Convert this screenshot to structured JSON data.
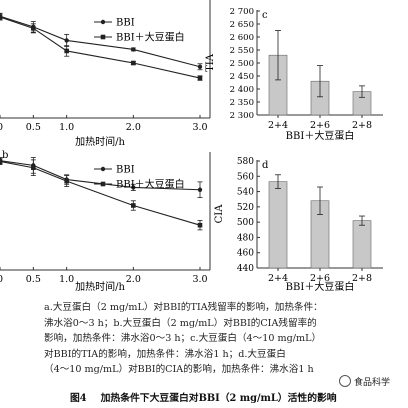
{
  "chart_data": [
    {
      "panel": "a",
      "type": "line",
      "x": [
        0,
        0.5,
        1.0,
        2.0,
        3.0
      ],
      "x_tick_labels": [
        "0",
        "0.5",
        "1.0",
        "2.0",
        "3.0"
      ],
      "xlabel": "加热时间/h",
      "ylabel": "",
      "legend_position": "top",
      "series": [
        {
          "name": "BBI",
          "values": [
            0.975,
            0.905,
            0.815,
            0.755,
            0.64
          ]
        },
        {
          "name": "BBI＋大豆蛋白",
          "values": [
            0.97,
            0.895,
            0.745,
            0.665,
            0.565
          ]
        }
      ],
      "error": [
        [
          0.02,
          0.035,
          0.04,
          0.01,
          0.02
        ],
        [
          0.02,
          0.03,
          0.035,
          0.01,
          0.015
        ]
      ],
      "ylim": [
        0.3,
        1.05
      ]
    },
    {
      "panel": "c",
      "type": "bar",
      "categories": [
        "2+4",
        "2+6",
        "2+8"
      ],
      "values": [
        2530,
        2430,
        2390
      ],
      "error": [
        95,
        60,
        22
      ],
      "xlabel": "BBI＋大豆蛋白",
      "ylabel": "TIA",
      "yticks": [
        "2 300",
        "2 350",
        "2 400",
        "2 450",
        "2 500",
        "2 550",
        "2 600",
        "2 650",
        "2 700"
      ],
      "ylim": [
        2300,
        2700
      ]
    },
    {
      "panel": "b",
      "type": "line",
      "x": [
        0,
        0.5,
        1.0,
        2.0,
        3.0
      ],
      "x_tick_labels": [
        "0",
        "0.5",
        "1.0",
        "2.0",
        "3.0"
      ],
      "xlabel": "加热时间/h",
      "ylabel": "",
      "legend_position": "top",
      "series": [
        {
          "name": "BBI",
          "values": [
            0.995,
            0.965,
            0.875,
            0.825,
            0.81
          ]
        },
        {
          "name": "BBI＋大豆蛋白",
          "values": [
            0.99,
            0.95,
            0.865,
            0.71,
            0.585
          ]
        }
      ],
      "error": [
        [
          0.02,
          0.05,
          0.03,
          0.02,
          0.05
        ],
        [
          0.02,
          0.05,
          0.035,
          0.03,
          0.03
        ]
      ],
      "ylim": [
        0.3,
        1.05
      ]
    },
    {
      "panel": "d",
      "type": "bar",
      "categories": [
        "2+4",
        "2+6",
        "2+8"
      ],
      "values": [
        553,
        528,
        502
      ],
      "error": [
        9,
        18,
        6
      ],
      "xlabel": "BBI＋大豆蛋白",
      "ylabel": "CIA",
      "yticks": [
        "440",
        "460",
        "480",
        "500",
        "520",
        "540",
        "560",
        "580"
      ],
      "ylim": [
        440,
        580
      ]
    }
  ],
  "panel_labels": {
    "b": "b",
    "c": "c",
    "d": "d"
  },
  "caption_lines": [
    "a.大豆蛋白（2 mg/mL）对BBI的TIA残留率的影响，加热条件：",
    "沸水浴0～3 h；b.大豆蛋白（2 mg/mL）对BBI的CIA残留率的",
    "影响，加热条件：沸水浴0～3 h；c.大豆蛋白（4～10 mg/mL）",
    "对BBI的TIA的影响，加热条件：沸水浴1 h；d.大豆蛋白",
    "（4～10 mg/mL）对BBI的CIA的影响，加热条件：沸水浴1 h"
  ],
  "figure_title": {
    "number": "图4",
    "text": "加热条件下大豆蛋白对BBI（2 mg/mL）活性的影响"
  },
  "watermark": "食品科学",
  "colors": {
    "line": "#222222",
    "bar_fill": "#c8c8c8",
    "bar_stroke": "#666666",
    "axis": "#333333"
  }
}
